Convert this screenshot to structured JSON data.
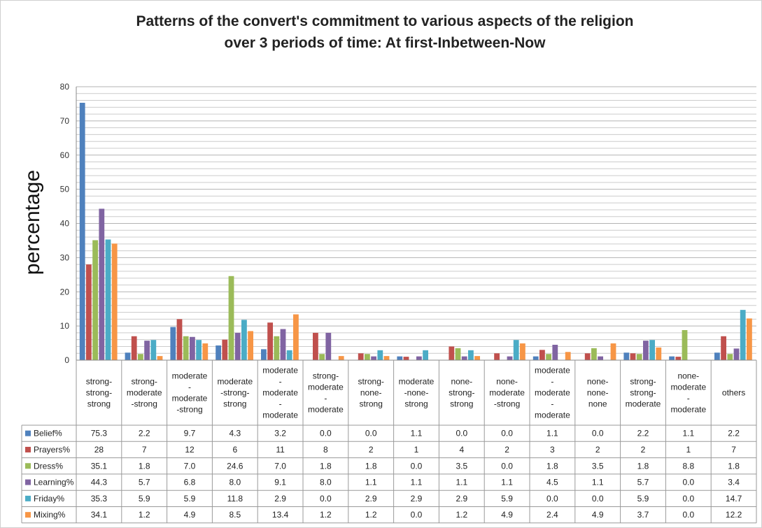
{
  "chart_data": {
    "type": "bar",
    "title_lines": [
      "Patterns of the convert's commitment to various aspects of the religion",
      "over 3 periods of time: At first-Inbetween-Now"
    ],
    "ylabel": "percentage",
    "ylim": [
      0,
      80
    ],
    "ytick_step": 10,
    "grid": "horizontal, every 2 units",
    "legend": "data table below x-axis",
    "categories": [
      [
        "strong-",
        "strong-",
        "strong"
      ],
      [
        "strong-",
        "moderate",
        "-strong"
      ],
      [
        "moderate",
        "-",
        "moderate",
        "-strong"
      ],
      [
        "moderate",
        "-strong-",
        "strong"
      ],
      [
        "moderate",
        "-",
        "moderate",
        "-",
        "moderate"
      ],
      [
        "strong-",
        "moderate",
        "-",
        "moderate"
      ],
      [
        "strong-",
        "none-",
        "strong"
      ],
      [
        "moderate",
        "-none-",
        "strong"
      ],
      [
        "none-",
        "strong-",
        "strong"
      ],
      [
        "none-",
        "moderate",
        "-strong"
      ],
      [
        "moderate",
        "-",
        "moderate",
        "-",
        "moderate"
      ],
      [
        "none-",
        "none-",
        "none"
      ],
      [
        "strong-",
        "strong-",
        "moderate"
      ],
      [
        "none-",
        "moderate",
        "-",
        "moderate"
      ],
      [
        "others"
      ]
    ],
    "series": [
      {
        "name": "Belief%",
        "color": "#4F81BD",
        "values": [
          75.3,
          2.2,
          9.7,
          4.3,
          3.2,
          0.0,
          0.0,
          1.1,
          0.0,
          0.0,
          1.1,
          0.0,
          2.2,
          1.1,
          2.2
        ],
        "labels": [
          "75.3",
          "2.2",
          "9.7",
          "4.3",
          "3.2",
          "0.0",
          "0.0",
          "1.1",
          "0.0",
          "0.0",
          "1.1",
          "0.0",
          "2.2",
          "1.1",
          "2.2"
        ]
      },
      {
        "name": "Prayers%",
        "color": "#C0504D",
        "values": [
          28,
          7,
          12,
          6,
          11,
          8,
          2,
          1,
          4,
          2,
          3,
          2,
          2,
          1,
          7
        ],
        "labels": [
          "28",
          "7",
          "12",
          "6",
          "11",
          "8",
          "2",
          "1",
          "4",
          "2",
          "3",
          "2",
          "2",
          "1",
          "7"
        ]
      },
      {
        "name": "Dress%",
        "color": "#9BBB59",
        "values": [
          35.1,
          1.8,
          7.0,
          24.6,
          7.0,
          1.8,
          1.8,
          0.0,
          3.5,
          0.0,
          1.8,
          3.5,
          1.8,
          8.8,
          1.8
        ],
        "labels": [
          "35.1",
          "1.8",
          "7.0",
          "24.6",
          "7.0",
          "1.8",
          "1.8",
          "0.0",
          "3.5",
          "0.0",
          "1.8",
          "3.5",
          "1.8",
          "8.8",
          "1.8"
        ]
      },
      {
        "name": "Learning%",
        "color": "#8064A2",
        "values": [
          44.3,
          5.7,
          6.8,
          8.0,
          9.1,
          8.0,
          1.1,
          1.1,
          1.1,
          1.1,
          4.5,
          1.1,
          5.7,
          0.0,
          3.4
        ],
        "labels": [
          "44.3",
          "5.7",
          "6.8",
          "8.0",
          "9.1",
          "8.0",
          "1.1",
          "1.1",
          "1.1",
          "1.1",
          "4.5",
          "1.1",
          "5.7",
          "0.0",
          "3.4"
        ]
      },
      {
        "name": "Friday%",
        "color": "#4BACC6",
        "values": [
          35.3,
          5.9,
          5.9,
          11.8,
          2.9,
          0.0,
          2.9,
          2.9,
          2.9,
          5.9,
          0.0,
          0.0,
          5.9,
          0.0,
          14.7
        ],
        "labels": [
          "35.3",
          "5.9",
          "5.9",
          "11.8",
          "2.9",
          "0.0",
          "2.9",
          "2.9",
          "2.9",
          "5.9",
          "0.0",
          "0.0",
          "5.9",
          "0.0",
          "14.7"
        ]
      },
      {
        "name": "Mixing%",
        "color": "#F79646",
        "values": [
          34.1,
          1.2,
          4.9,
          8.5,
          13.4,
          1.2,
          1.2,
          0.0,
          1.2,
          4.9,
          2.4,
          4.9,
          3.7,
          0.0,
          12.2
        ],
        "labels": [
          "34.1",
          "1.2",
          "4.9",
          "8.5",
          "13.4",
          "1.2",
          "1.2",
          "0.0",
          "1.2",
          "4.9",
          "2.4",
          "4.9",
          "3.7",
          "0.0",
          "12.2"
        ]
      }
    ]
  }
}
